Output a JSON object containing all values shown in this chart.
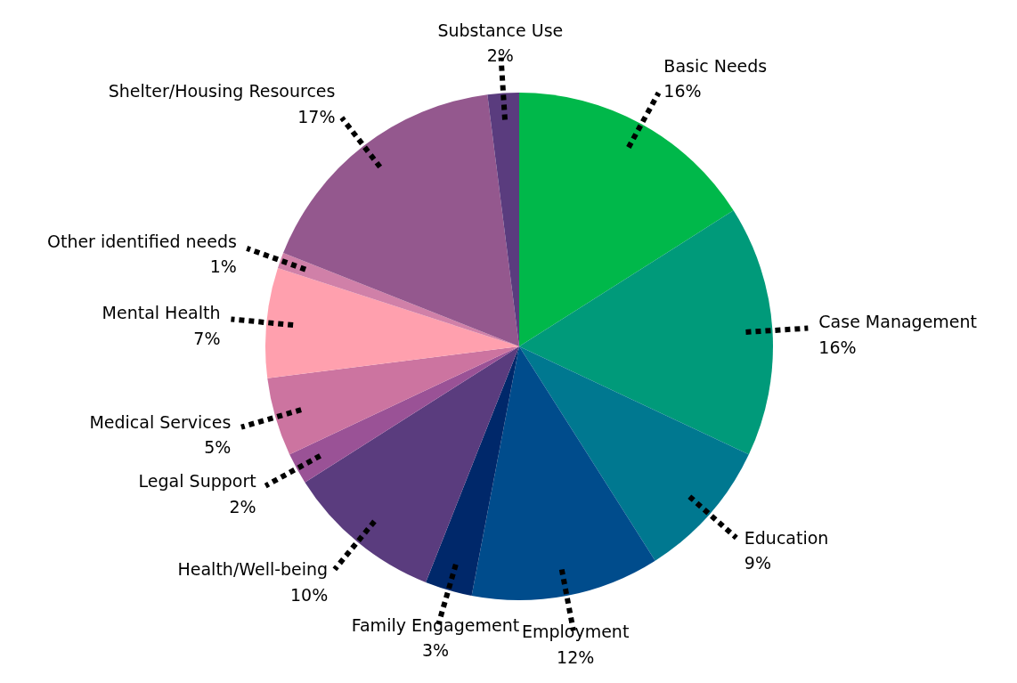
{
  "chart_data": {
    "type": "pie",
    "categories": [
      "Basic Needs",
      "Case Management",
      "Education",
      "Employment",
      "Family Engagement",
      "Health/Well-being",
      "Legal Support",
      "Medical Services",
      "Mental Health",
      "Other identified needs",
      "Shelter/Housing Resources",
      "Substance Use"
    ],
    "values": [
      16,
      16,
      9,
      12,
      3,
      10,
      2,
      5,
      7,
      1,
      17,
      2
    ],
    "value_labels": [
      "16%",
      "16%",
      "9%",
      "12%",
      "3%",
      "10%",
      "2%",
      "5%",
      "7%",
      "1%",
      "17%",
      "2%"
    ],
    "colors": [
      "#00b84a",
      "#009a7a",
      "#007890",
      "#004c8c",
      "#00286a",
      "#5a3c7e",
      "#9a5296",
      "#cc74a0",
      "#ffa0ae",
      "#d080a8",
      "#94588e",
      "#5a3c7e"
    ]
  }
}
